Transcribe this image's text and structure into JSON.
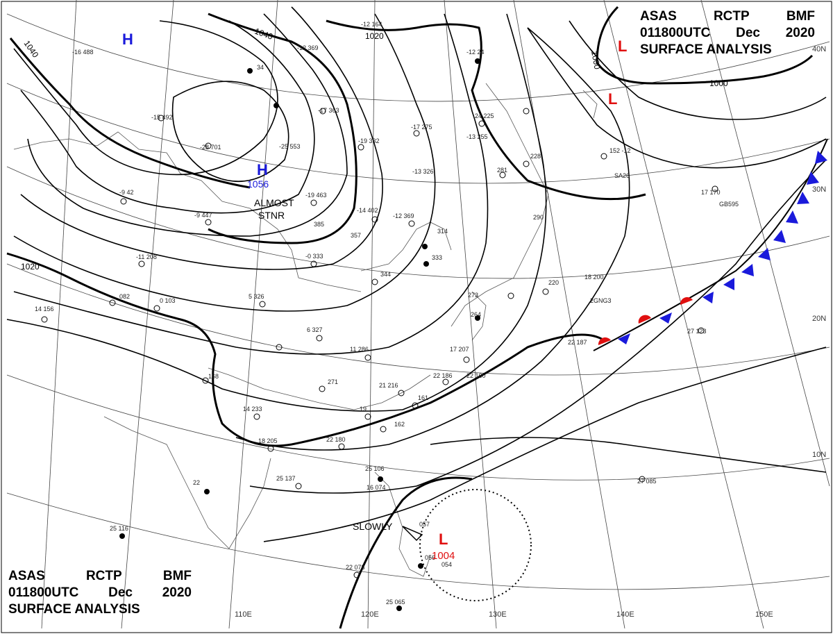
{
  "header": {
    "agency": "ASAS",
    "station": "RCTP",
    "code": "BMF",
    "time": "011800UTC",
    "month": "Dec",
    "year": "2020",
    "product": "SURFACE ANALYSIS"
  },
  "pressure_centers": [
    {
      "type": "H",
      "value": "",
      "color": "#1a1adb"
    },
    {
      "type": "H",
      "value": "1056",
      "color": "#1a1adb"
    },
    {
      "type": "L",
      "value": "",
      "color": "#e01010"
    },
    {
      "type": "L",
      "value": "",
      "color": "#e01010"
    },
    {
      "type": "L",
      "value": "1004",
      "color": "#e01010"
    }
  ],
  "isobar_labels": [
    "1040",
    "1040",
    "1020",
    "1020",
    "1000",
    "1000"
  ],
  "annotations": [
    "ALMOST",
    "STNR",
    "SLOWLY"
  ],
  "lon_labels": [
    "110E",
    "120E",
    "130E",
    "140E",
    "150E"
  ],
  "lat_labels": [
    "40N",
    "30N",
    "20N",
    "10N"
  ],
  "ship_codes": [
    "GB595",
    "2GNG3",
    "SA26"
  ],
  "observations": [
    "-16 488",
    "-12 164",
    "-12 369",
    "34",
    "-17 363",
    "-15 492",
    "-28 701",
    "-25 553",
    "-17 275",
    "-19 332",
    "-12 24",
    "24 225",
    "-13 255",
    "281",
    "228",
    "152 -12",
    "-13 326",
    "-19 463",
    "-14 402",
    "-12 369",
    "-9 447",
    "385",
    "357",
    "-9 42",
    "-11 208",
    "-0 333",
    "314",
    "333",
    "344",
    "290",
    "220",
    "18 200",
    "0 103",
    "082",
    "14 156",
    "5 326",
    "6 327",
    "11 286",
    "17 207",
    "22 186",
    "22 160",
    "271",
    "21 216",
    "161",
    "14 233",
    "19",
    "162",
    "18 205",
    "22 180",
    "25 106",
    "16 074",
    "25 137",
    "22",
    "25 116",
    "22 078",
    "056",
    "054",
    "25 065",
    "057",
    "22 187",
    "27 085",
    "17 170",
    "27 123",
    "264",
    "273",
    "168"
  ],
  "colors": {
    "high": "#1a1adb",
    "low": "#e01010",
    "warm_front": "#e01010",
    "cold_front": "#1a1adb",
    "isobar": "#000000"
  }
}
